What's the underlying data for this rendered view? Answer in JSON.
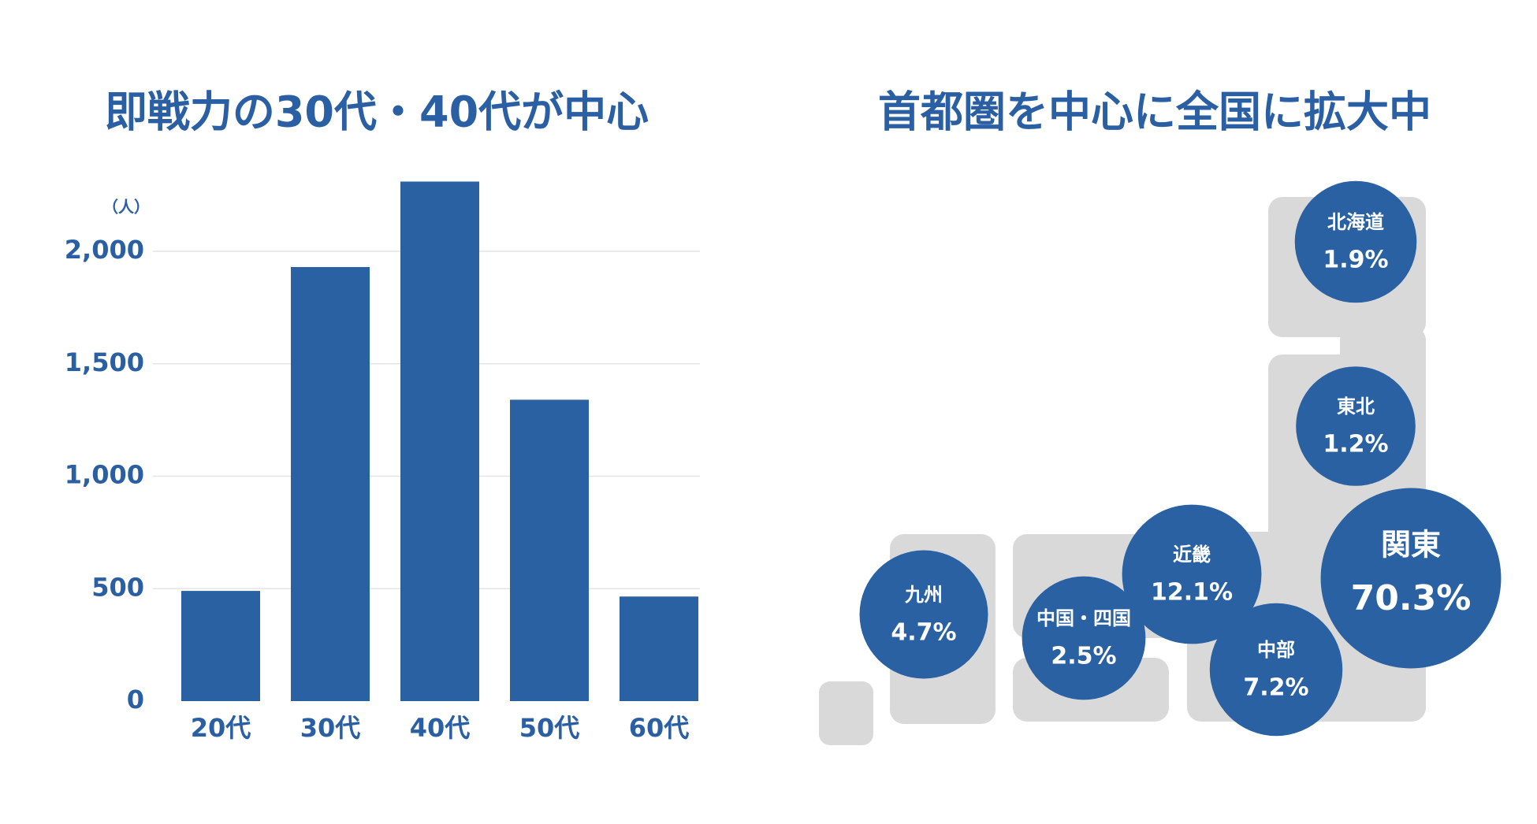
{
  "chart_data": [
    {
      "type": "bar",
      "title": "即戦力の30代・40代が中心",
      "y_unit": "（人）",
      "categories": [
        "20代",
        "30代",
        "40代",
        "50代",
        "60代"
      ],
      "values": [
        490,
        1930,
        2310,
        1340,
        465
      ],
      "color": "#2a61a3",
      "ylim": [
        0,
        2400
      ],
      "yticks": [
        0,
        500,
        {
          "value": 1000,
          "label": "1,000"
        },
        {
          "value": 1500,
          "label": "1,500"
        },
        {
          "value": 2000,
          "label": "2,000"
        }
      ],
      "grid": true
    },
    {
      "type": "bubble",
      "title": "首都圏を中心に全国に拡大中",
      "categories": [
        "北海道",
        "東北",
        "関東",
        "近畿",
        "中部",
        "中国・四国",
        "九州"
      ],
      "values": [
        1.9,
        1.2,
        70.3,
        12.1,
        7.2,
        2.5,
        4.7
      ],
      "value_labels": [
        "1.9%",
        "1.2%",
        "70.3%",
        "12.1%",
        "7.2%",
        "2.5%",
        "4.7%"
      ],
      "color": "#2a61a3"
    }
  ]
}
